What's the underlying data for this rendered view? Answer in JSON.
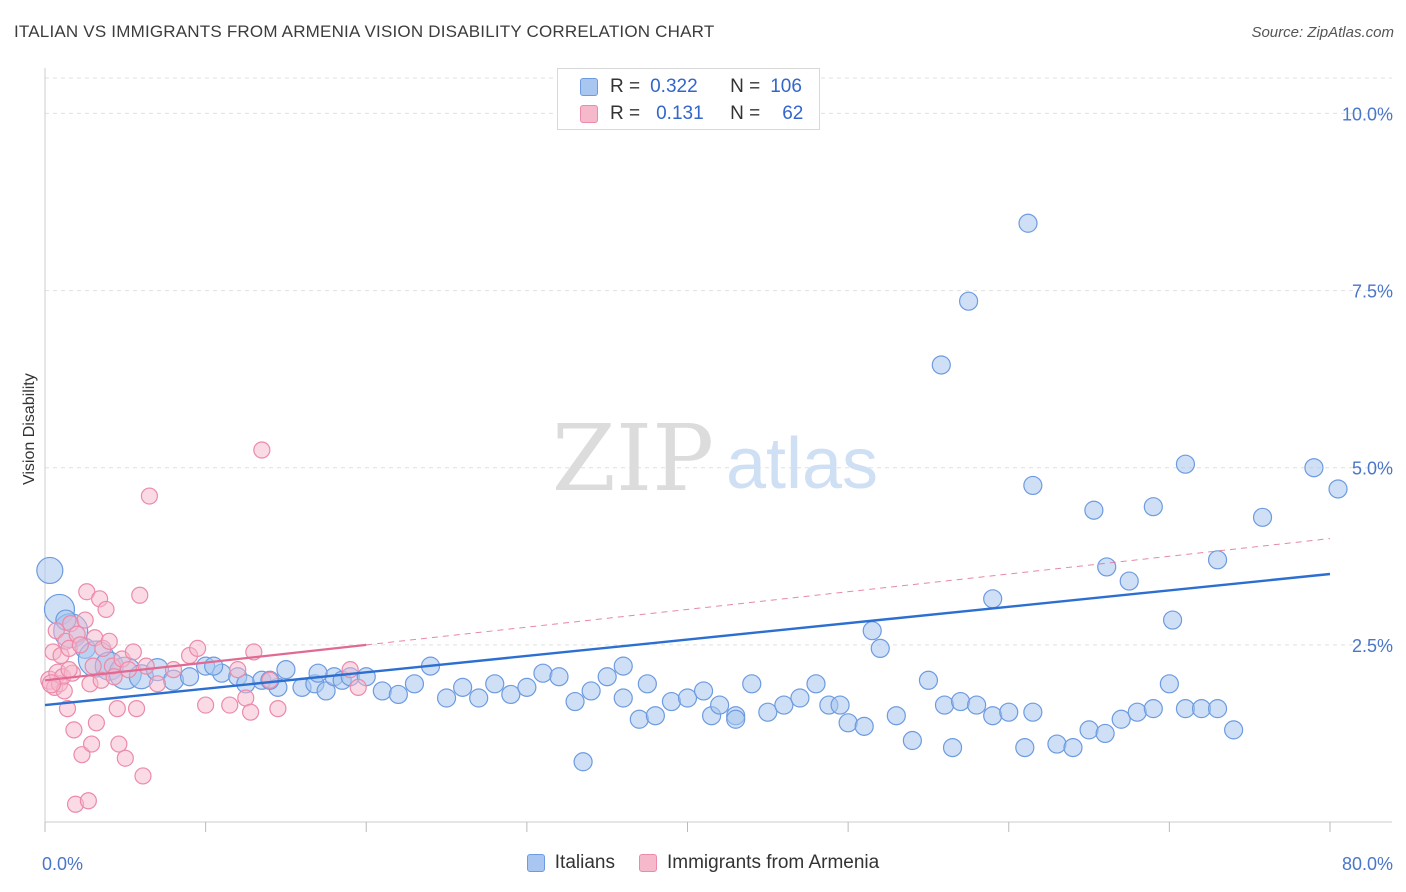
{
  "header": {
    "title": "ITALIAN VS IMMIGRANTS FROM ARMENIA VISION DISABILITY CORRELATION CHART",
    "source": "Source: ZipAtlas.com"
  },
  "watermark": {
    "zip": "ZIP",
    "atlas": "atlas"
  },
  "legend_top": {
    "rows": [
      {
        "r_label": "R =",
        "r_value": "0.322",
        "n_label": "N =",
        "n_value": "106"
      },
      {
        "r_label": "R =",
        "r_value": "0.131",
        "n_label": "N =",
        "n_value": "62"
      }
    ]
  },
  "bottom_legend": {
    "items": [
      "Italians",
      "Immigrants from Armenia"
    ]
  },
  "colors": {
    "italians_fill": "#a8c6ef",
    "italians_stroke": "#6d9be0",
    "italians_line": "#2c6fd1",
    "armenia_fill": "#f6b8cb",
    "armenia_stroke": "#ec8aa9",
    "armenia_line": "#e06a92",
    "grid": "#e0e0e0",
    "tick_text": "#4a76c8"
  },
  "chart_data": {
    "type": "scatter",
    "title": "ITALIAN VS IMMIGRANTS FROM ARMENIA VISION DISABILITY CORRELATION CHART",
    "xlabel": "",
    "ylabel": "Vision Disability",
    "xlim": [
      0,
      80
    ],
    "ylim": [
      0,
      10.5
    ],
    "x_tick_labels": [
      "0.0%",
      "80.0%"
    ],
    "y_ticks": [
      2.5,
      5.0,
      7.5,
      10.0
    ],
    "y_tick_labels": [
      "2.5%",
      "5.0%",
      "7.5%",
      "10.0%"
    ],
    "grid": "horizontal dashed",
    "legend_position": "top-center",
    "series": [
      {
        "name": "Italians",
        "r": 0.322,
        "n": 106,
        "trend": {
          "x": [
            0,
            80
          ],
          "y": [
            1.65,
            3.5
          ],
          "style": "solid"
        },
        "points": [
          [
            0.3,
            3.55,
            13
          ],
          [
            0.9,
            3.0,
            15
          ],
          [
            1.6,
            2.7,
            17
          ],
          [
            1.3,
            2.85,
            10
          ],
          [
            2.5,
            2.45,
            10
          ],
          [
            3.2,
            2.3,
            18
          ],
          [
            4.0,
            2.2,
            14
          ],
          [
            5.0,
            2.1,
            16
          ],
          [
            6.0,
            2.05,
            12
          ],
          [
            7.0,
            2.15,
            11
          ],
          [
            8.0,
            2.0,
            10
          ],
          [
            9.0,
            2.05,
            9
          ],
          [
            10.0,
            2.2,
            9
          ],
          [
            11.0,
            2.1,
            9
          ],
          [
            12.0,
            2.05,
            9
          ],
          [
            12.5,
            1.95,
            9
          ],
          [
            13.5,
            2.0,
            9
          ],
          [
            14.5,
            1.9,
            9
          ],
          [
            15.0,
            2.15,
            9
          ],
          [
            16.0,
            1.9,
            9
          ],
          [
            16.8,
            1.95,
            9
          ],
          [
            17.5,
            1.85,
            9
          ],
          [
            18.0,
            2.05,
            9
          ],
          [
            18.5,
            2.0,
            9
          ],
          [
            19.0,
            2.05,
            9
          ],
          [
            20.0,
            2.05,
            9
          ],
          [
            21.0,
            1.85,
            9
          ],
          [
            22.0,
            1.8,
            9
          ],
          [
            23.0,
            1.95,
            9
          ],
          [
            24.0,
            2.2,
            9
          ],
          [
            25.0,
            1.75,
            9
          ],
          [
            26.0,
            1.9,
            9
          ],
          [
            27.0,
            1.75,
            9
          ],
          [
            28.0,
            1.95,
            9
          ],
          [
            29.0,
            1.8,
            9
          ],
          [
            30.0,
            1.9,
            9
          ],
          [
            31.0,
            2.1,
            9
          ],
          [
            32.0,
            2.05,
            9
          ],
          [
            33.0,
            1.7,
            9
          ],
          [
            34.0,
            1.85,
            9
          ],
          [
            35.0,
            2.05,
            9
          ],
          [
            36.0,
            1.75,
            9
          ],
          [
            37.0,
            1.45,
            9
          ],
          [
            37.5,
            1.95,
            9
          ],
          [
            38.0,
            1.5,
            9
          ],
          [
            39.0,
            1.7,
            9
          ],
          [
            40.0,
            1.75,
            9
          ],
          [
            41.0,
            1.85,
            9
          ],
          [
            41.5,
            1.5,
            9
          ],
          [
            42.0,
            1.65,
            9
          ],
          [
            43.0,
            1.5,
            9
          ],
          [
            44.0,
            1.95,
            9
          ],
          [
            45.0,
            1.55,
            9
          ],
          [
            46.0,
            1.65,
            9
          ],
          [
            47.0,
            1.75,
            9
          ],
          [
            48.0,
            1.95,
            9
          ],
          [
            48.8,
            1.65,
            9
          ],
          [
            49.5,
            1.65,
            9
          ],
          [
            50.0,
            1.4,
            9
          ],
          [
            51.5,
            2.7,
            9
          ],
          [
            52.0,
            2.45,
            9
          ],
          [
            53.0,
            1.5,
            9
          ],
          [
            54.0,
            1.15,
            9
          ],
          [
            55.0,
            2.0,
            9
          ],
          [
            56.0,
            1.65,
            9
          ],
          [
            56.5,
            1.05,
            9
          ],
          [
            57.0,
            1.7,
            9
          ],
          [
            58.0,
            1.65,
            9
          ],
          [
            59.0,
            1.5,
            9
          ],
          [
            60.0,
            1.55,
            9
          ],
          [
            61.0,
            1.05,
            9
          ],
          [
            61.5,
            1.55,
            9
          ],
          [
            63.0,
            1.1,
            9
          ],
          [
            64.0,
            1.05,
            9
          ],
          [
            65.0,
            1.3,
            9
          ],
          [
            66.0,
            1.25,
            9
          ],
          [
            67.0,
            1.45,
            9
          ],
          [
            68.0,
            1.55,
            9
          ],
          [
            69.0,
            1.6,
            9
          ],
          [
            70.0,
            1.95,
            9
          ],
          [
            71.0,
            1.6,
            9
          ],
          [
            72.0,
            1.6,
            9
          ],
          [
            73.0,
            1.6,
            9
          ],
          [
            74.0,
            1.3,
            9
          ],
          [
            55.8,
            6.45,
            9
          ],
          [
            57.5,
            7.35,
            9
          ],
          [
            61.2,
            8.45,
            9
          ],
          [
            59.0,
            3.15,
            9
          ],
          [
            61.5,
            4.75,
            9
          ],
          [
            65.3,
            4.4,
            9
          ],
          [
            66.1,
            3.6,
            9
          ],
          [
            67.5,
            3.4,
            9
          ],
          [
            69.0,
            4.45,
            9
          ],
          [
            70.2,
            2.85,
            9
          ],
          [
            71.0,
            5.05,
            9
          ],
          [
            73.0,
            3.7,
            9
          ],
          [
            75.8,
            4.3,
            9
          ],
          [
            79.0,
            5.0,
            9
          ],
          [
            80.5,
            4.7,
            9
          ],
          [
            33.5,
            0.85,
            9
          ],
          [
            43.0,
            1.45,
            9
          ],
          [
            51.0,
            1.35,
            9
          ],
          [
            36.0,
            2.2,
            9
          ],
          [
            14.0,
            2.0,
            9
          ],
          [
            10.5,
            2.2,
            9
          ],
          [
            17.0,
            2.1,
            9
          ]
        ]
      },
      {
        "name": "Immigrants from Armenia",
        "r": 0.131,
        "n": 62,
        "trend": {
          "x": [
            0,
            20
          ],
          "y": [
            2.0,
            2.5
          ],
          "style": "solid"
        },
        "trend_extension": {
          "x": [
            20,
            80
          ],
          "y": [
            2.5,
            4.0
          ],
          "style": "dashed"
        },
        "points": [
          [
            0.3,
            2.0,
            9
          ],
          [
            0.5,
            2.4,
            8
          ],
          [
            0.6,
            1.9,
            8
          ],
          [
            0.7,
            2.7,
            8
          ],
          [
            0.8,
            2.1,
            9
          ],
          [
            0.9,
            1.95,
            8
          ],
          [
            1.0,
            2.35,
            8
          ],
          [
            1.1,
            2.05,
            8
          ],
          [
            1.2,
            1.85,
            8
          ],
          [
            1.3,
            2.55,
            8
          ],
          [
            1.4,
            1.6,
            8
          ],
          [
            1.5,
            2.45,
            8
          ],
          [
            1.6,
            2.8,
            8
          ],
          [
            1.7,
            2.1,
            8
          ],
          [
            1.8,
            1.3,
            8
          ],
          [
            1.9,
            0.25,
            8
          ],
          [
            2.0,
            2.65,
            8
          ],
          [
            2.2,
            2.5,
            8
          ],
          [
            2.3,
            0.95,
            8
          ],
          [
            2.5,
            2.85,
            8
          ],
          [
            2.6,
            3.25,
            8
          ],
          [
            2.7,
            0.3,
            8
          ],
          [
            2.8,
            1.95,
            8
          ],
          [
            3.0,
            2.2,
            8
          ],
          [
            3.1,
            2.6,
            8
          ],
          [
            3.2,
            1.4,
            8
          ],
          [
            3.4,
            3.15,
            8
          ],
          [
            3.5,
            2.0,
            8
          ],
          [
            3.6,
            2.45,
            8
          ],
          [
            3.8,
            3.0,
            8
          ],
          [
            4.0,
            2.55,
            8
          ],
          [
            4.2,
            2.2,
            8
          ],
          [
            4.5,
            1.6,
            8
          ],
          [
            4.6,
            1.1,
            8
          ],
          [
            4.8,
            2.3,
            8
          ],
          [
            5.0,
            0.9,
            8
          ],
          [
            5.2,
            2.15,
            8
          ],
          [
            5.5,
            2.4,
            8
          ],
          [
            5.7,
            1.6,
            8
          ],
          [
            5.9,
            3.2,
            8
          ],
          [
            6.1,
            0.65,
            8
          ],
          [
            6.3,
            2.2,
            8
          ],
          [
            6.5,
            4.6,
            8
          ],
          [
            7.0,
            1.95,
            8
          ],
          [
            8.0,
            2.15,
            8
          ],
          [
            9.0,
            2.35,
            8
          ],
          [
            9.5,
            2.45,
            8
          ],
          [
            10.0,
            1.65,
            8
          ],
          [
            11.5,
            1.65,
            8
          ],
          [
            12.0,
            2.15,
            8
          ],
          [
            12.5,
            1.75,
            8
          ],
          [
            12.8,
            1.55,
            8
          ],
          [
            13.0,
            2.4,
            8
          ],
          [
            13.5,
            5.25,
            8
          ],
          [
            14.0,
            2.0,
            8
          ],
          [
            14.5,
            1.6,
            8
          ],
          [
            2.9,
            1.1,
            8
          ],
          [
            0.4,
            1.95,
            9
          ],
          [
            19.0,
            2.15,
            8
          ],
          [
            19.5,
            1.9,
            8
          ],
          [
            4.3,
            2.05,
            8
          ],
          [
            1.5,
            2.15,
            8
          ]
        ]
      }
    ]
  }
}
